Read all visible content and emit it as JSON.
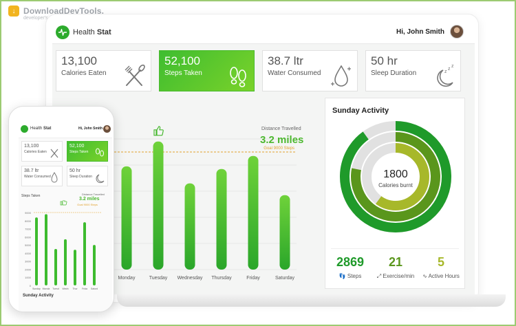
{
  "watermark": {
    "brand": "DownloadDevTools.",
    "tagline": "developer's paradise"
  },
  "app": {
    "name_prefix": "Health",
    "name_bold": "Stat",
    "greeting": "Hi, John Smith"
  },
  "cards": [
    {
      "value": "13,100",
      "label": "Calories Eaten",
      "icon": "fork-knife-icon",
      "active": false
    },
    {
      "value": "52,100",
      "label": "Steps Taken",
      "icon": "footprints-icon",
      "active": true
    },
    {
      "value": "38.7 ltr",
      "label": "Water Consumed",
      "icon": "water-drop-icon",
      "active": false
    },
    {
      "value": "50 hr",
      "label": "Sleep Duration",
      "icon": "moon-sleep-icon",
      "active": false
    }
  ],
  "distance": {
    "label": "Distance Travelled",
    "value": "3.2 miles"
  },
  "chart_data": {
    "type": "bar",
    "title": "Steps Taken",
    "categories": [
      "Monday",
      "Tuesday",
      "Wednesday",
      "Thursday",
      "Friday",
      "Saturday"
    ],
    "values": [
      7900,
      9800,
      6600,
      7700,
      8700,
      5700
    ],
    "goal": 9000,
    "goal_label": "Goal 9000 Steps",
    "best_day": "Tuesday",
    "phone_yticks": [
      "9000",
      "8000",
      "7000",
      "6000",
      "5000",
      "4000",
      "3000",
      "2000",
      "1000",
      "0"
    ],
    "phone_categories": [
      "Sunday",
      "Monday",
      "Tuesday",
      "Wednesday",
      "Thursday",
      "Friday",
      "Saturday"
    ],
    "phone_category_labels": [
      "Sunday",
      "Monda",
      "Tuesd",
      "Wedn",
      "Thur",
      "Frida",
      "Saturd"
    ],
    "phone_values": [
      8400,
      8800,
      4500,
      5700,
      4400,
      7800,
      5000
    ],
    "ylim": [
      0,
      10000
    ]
  },
  "activity": {
    "title": "Sunday Activity",
    "calories_value": "1800",
    "calories_label": "Calories burnt",
    "rings": [
      {
        "name": "Steps",
        "fraction": 0.9,
        "color": "#1f9a2a"
      },
      {
        "name": "Exercise",
        "fraction": 0.78,
        "color": "#5a961c"
      },
      {
        "name": "Active Hours",
        "fraction": 0.6,
        "color": "#a7b82a"
      }
    ],
    "stats": [
      {
        "value": "2869",
        "label": "Steps",
        "icon": "footsteps-icon",
        "color": "#1f9a2a"
      },
      {
        "value": "21",
        "label": "Exercise/min",
        "icon": "dumbbell-icon",
        "color": "#5a961c"
      },
      {
        "value": "5",
        "label": "Active Hours",
        "icon": "pulse-icon",
        "color": "#a7b82a"
      }
    ]
  },
  "phone": {
    "cards": [
      {
        "value": "13,100",
        "label": "Calories Eaten"
      },
      {
        "value": "52,100",
        "label": "Steps Taken"
      },
      {
        "value": "38.7 ltr",
        "label": "Water Consumed"
      },
      {
        "value": "50 hr",
        "label": "Sleep Duration"
      }
    ],
    "chart_title": "Steps Taken",
    "distance_label": "Distance Travelled",
    "distance_value": "3.2 miles",
    "goal_label": "Goal 9000 Steps",
    "activity_title": "Sunday Activity"
  },
  "colors": {
    "accent": "#3fbd30",
    "accent_light": "#7ad22a",
    "goal_line": "#e0a12c"
  }
}
